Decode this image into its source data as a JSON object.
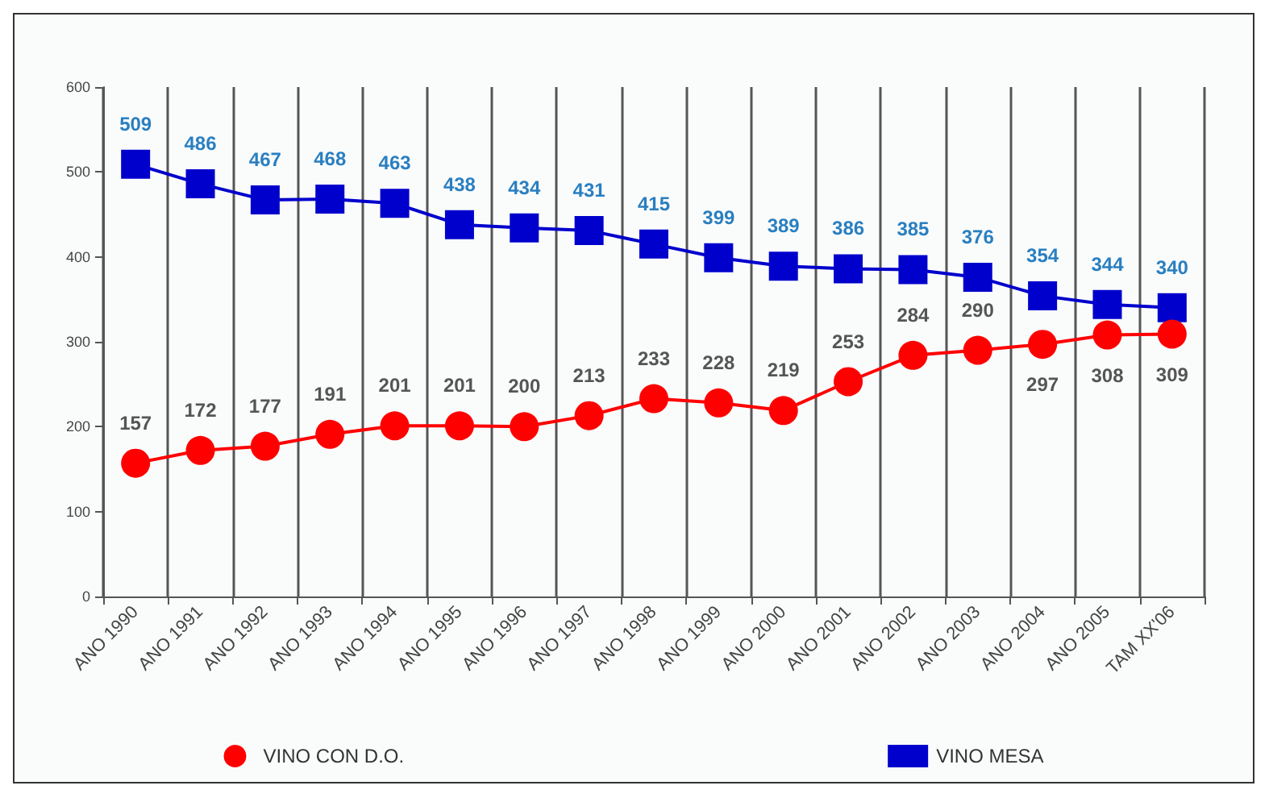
{
  "chart_data": {
    "type": "line",
    "categories": [
      "ANO 1990",
      "ANO 1991",
      "ANO 1992",
      "ANO 1993",
      "ANO 1994",
      "ANO 1995",
      "ANO 1996",
      "ANO 1997",
      "ANO 1998",
      "ANO 1999",
      "ANO 2000",
      "ANO 2001",
      "ANO 2002",
      "ANO 2003",
      "ANO 2004",
      "ANO 2005",
      "TAM XX'06"
    ],
    "series": [
      {
        "name": "VINO CON D.O.",
        "color": "#ff0000",
        "marker": "circle",
        "values": [
          157,
          172,
          177,
          191,
          201,
          201,
          200,
          213,
          233,
          228,
          219,
          253,
          284,
          290,
          297,
          308,
          309
        ]
      },
      {
        "name": "VINO MESA",
        "color": "#0000cc",
        "marker": "square",
        "values": [
          509,
          486,
          467,
          468,
          463,
          438,
          434,
          431,
          415,
          399,
          389,
          386,
          385,
          376,
          354,
          344,
          340
        ]
      }
    ],
    "ylim": [
      0,
      600
    ],
    "yticks": [
      0,
      100,
      200,
      300,
      400,
      500,
      600
    ],
    "grid": "x",
    "legend": "bottom",
    "data_labels": true
  }
}
